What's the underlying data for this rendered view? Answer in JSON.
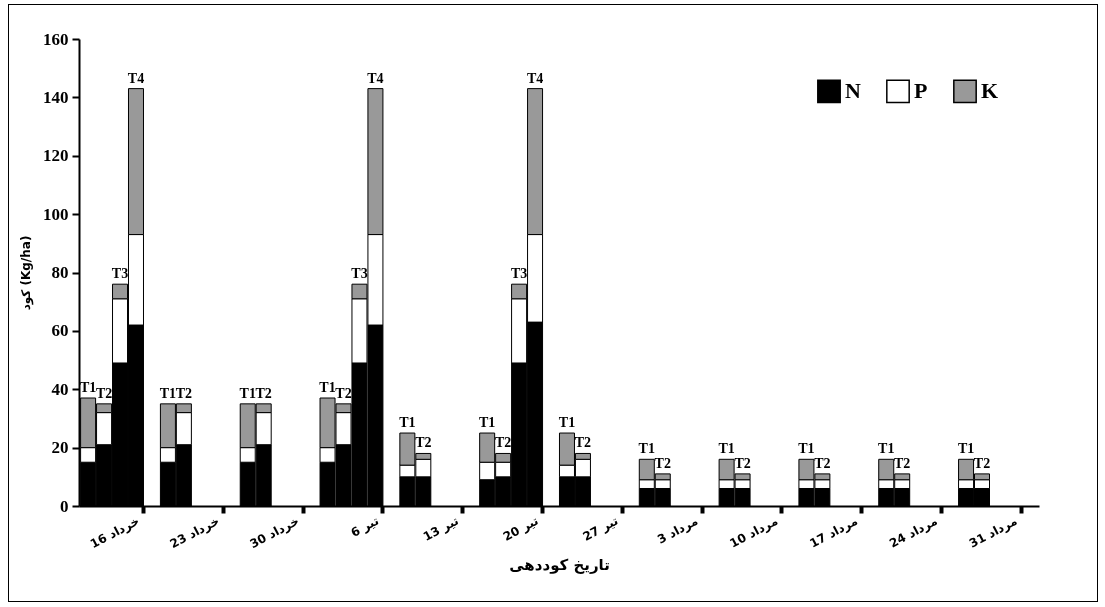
{
  "chart_data": {
    "type": "bar",
    "stacked": true,
    "xlabel": "تاریخ کوددهی",
    "ylabel": "کود (Kg/ha)",
    "categories": [
      null,
      null,
      null,
      "16 خرداد",
      null,
      null,
      null,
      null,
      "23 خرداد",
      null,
      null,
      null,
      null,
      "30 خرداد",
      null,
      null,
      null,
      null,
      "6 تیر",
      null,
      null,
      null,
      null,
      "13 تیر",
      null,
      null,
      null,
      null,
      "20 تیر",
      null,
      null,
      null,
      null,
      "27 تیر",
      null,
      null,
      null,
      null,
      "3 مرداد",
      null,
      null,
      null,
      null,
      "10 مرداد",
      null,
      null,
      null,
      null,
      "17 مرداد",
      null,
      null,
      null,
      null,
      "24 مرداد",
      null,
      null,
      null,
      null,
      "31 مرداد",
      null
    ],
    "series": [
      {
        "name": "N",
        "color": "#000000",
        "values": [
          15,
          21,
          49,
          62,
          null,
          15,
          21,
          null,
          null,
          null,
          15,
          21,
          null,
          null,
          null,
          15,
          21,
          49,
          62,
          null,
          10,
          10,
          null,
          null,
          null,
          9,
          10,
          49,
          63,
          null,
          10,
          10,
          null,
          null,
          null,
          6,
          6,
          null,
          null,
          null,
          6,
          6,
          null,
          null,
          null,
          6,
          6,
          null,
          null,
          null,
          6,
          6,
          null,
          null,
          null,
          6,
          6,
          null,
          null,
          null
        ]
      },
      {
        "name": "P",
        "color": "#ffffff",
        "values": [
          5,
          11,
          22,
          31,
          null,
          5,
          11,
          null,
          null,
          null,
          5,
          11,
          null,
          null,
          null,
          5,
          11,
          22,
          31,
          null,
          4,
          6,
          null,
          null,
          null,
          6,
          5,
          22,
          30,
          null,
          4,
          6,
          null,
          null,
          null,
          3,
          3,
          null,
          null,
          null,
          3,
          3,
          null,
          null,
          null,
          3,
          3,
          null,
          null,
          null,
          3,
          3,
          null,
          null,
          null,
          3,
          3,
          null,
          null,
          null
        ]
      },
      {
        "name": "K",
        "color": "#999999",
        "values": [
          17,
          3,
          5,
          50,
          null,
          15,
          3,
          null,
          null,
          null,
          15,
          3,
          null,
          null,
          null,
          17,
          3,
          5,
          50,
          null,
          11,
          2,
          null,
          null,
          null,
          10,
          3,
          5,
          50,
          null,
          11,
          2,
          null,
          null,
          null,
          7,
          2,
          null,
          null,
          null,
          7,
          2,
          null,
          null,
          null,
          7,
          2,
          null,
          null,
          null,
          7,
          2,
          null,
          null,
          null,
          7,
          2,
          null,
          null,
          null
        ],
        "value_labels": [
          "T1",
          "T2",
          "T3",
          "T4",
          null,
          "T1",
          "T2",
          null,
          null,
          null,
          "T1",
          "T2",
          null,
          null,
          null,
          "T1",
          "T2",
          "T3",
          "T4",
          null,
          "T1",
          "T2",
          null,
          null,
          null,
          "T1",
          "T2",
          "T3",
          "T4",
          null,
          "T1",
          "T2",
          null,
          null,
          null,
          "T1",
          "T2",
          null,
          null,
          null,
          "T1",
          "T2",
          null,
          null,
          null,
          "T1",
          "T2",
          null,
          null,
          null,
          "T1",
          "T2",
          null,
          null,
          null,
          "T1",
          "T2",
          null,
          null,
          null
        ]
      }
    ],
    "ylim": [
      0,
      160
    ],
    "yticks": [
      0,
      20,
      40,
      60,
      80,
      100,
      120,
      140,
      160
    ],
    "grid": false,
    "legend": "top right"
  }
}
